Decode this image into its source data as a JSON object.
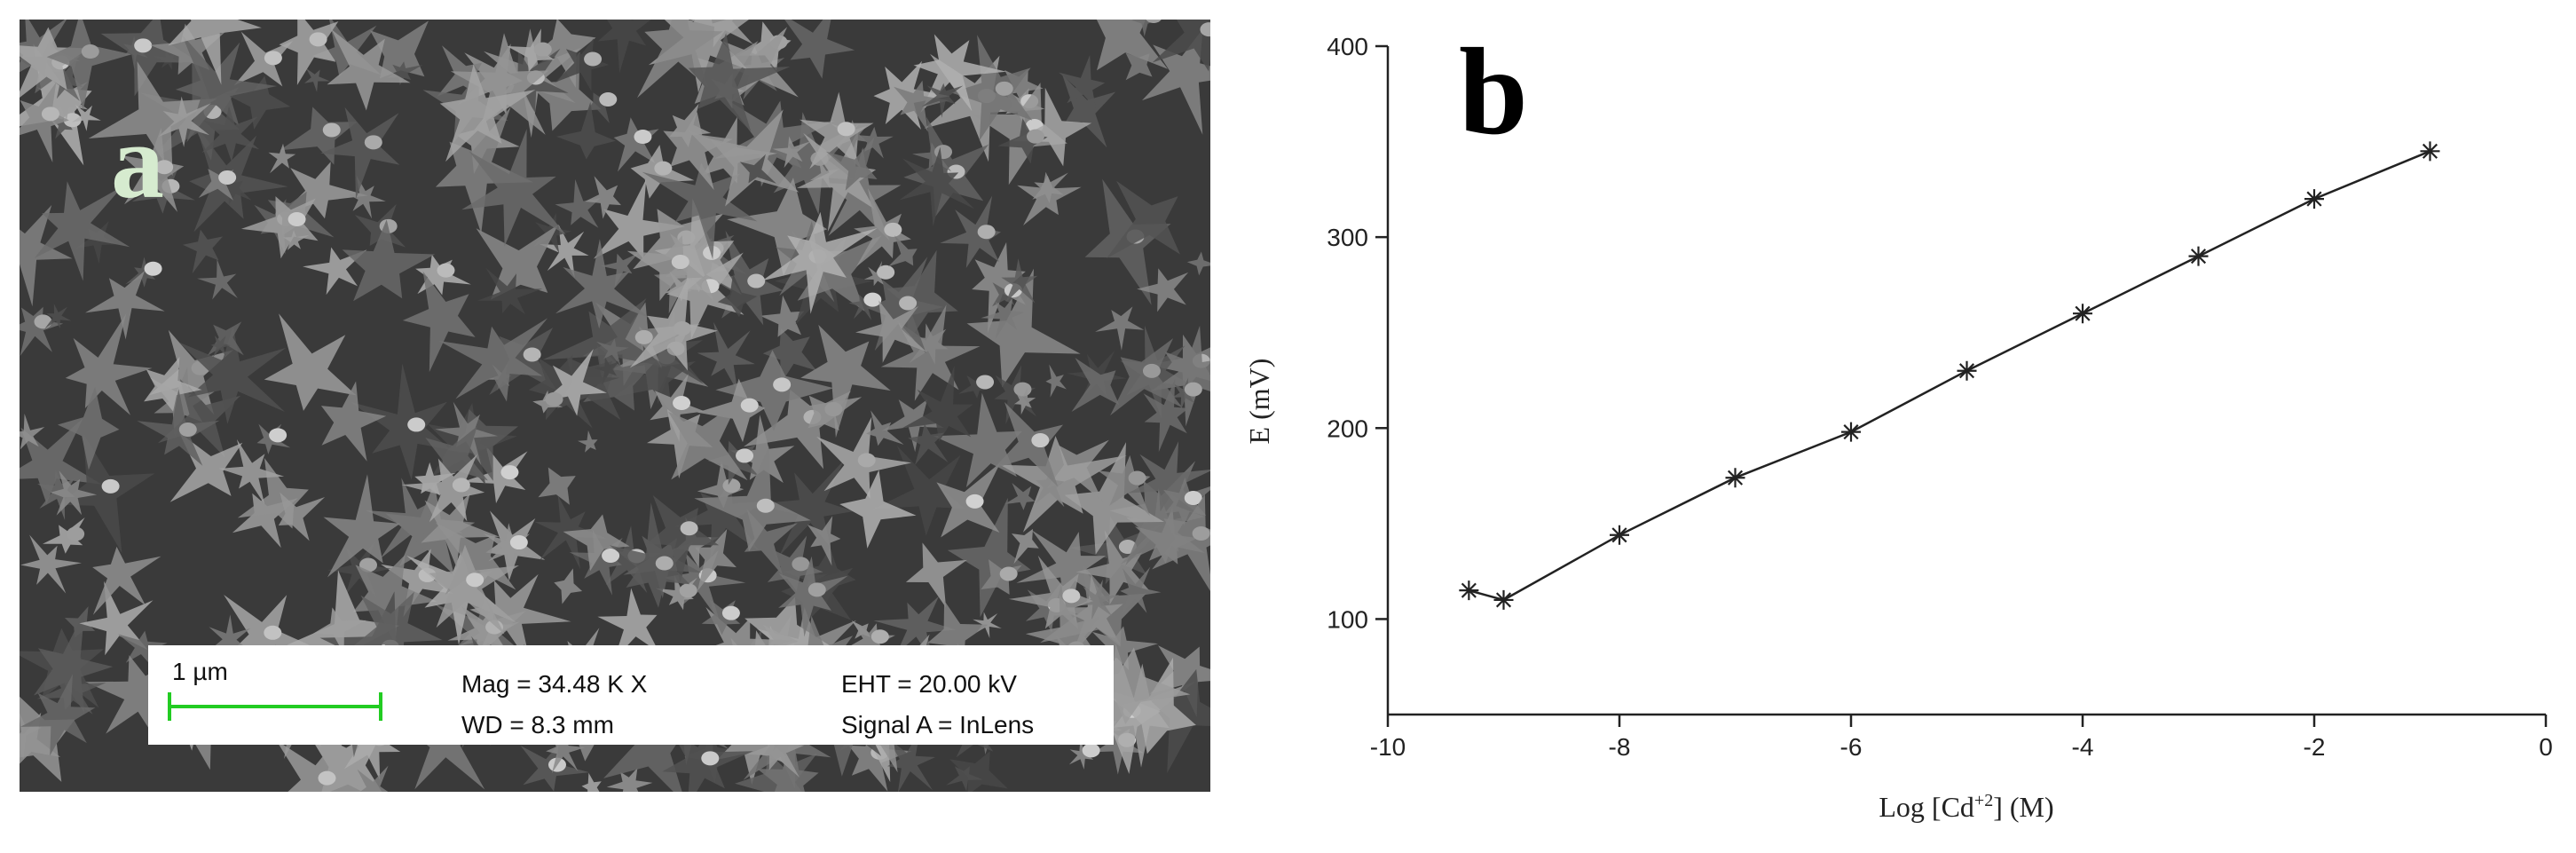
{
  "sem_image": {
    "panel_label": "a",
    "scale_bar": "1 µm",
    "mag": "Mag =  34.48 K X",
    "wd": "WD =  8.3 mm",
    "eht": "EHT = 20.00 kV",
    "signal": "Signal A = InLens"
  },
  "chart_data": {
    "type": "line",
    "panel_label": "b",
    "y_label": "E (mV)",
    "x_label": {
      "before": "Log [Cd",
      "superscript": "+2",
      "after": "] (M)"
    },
    "x": [
      -9.3,
      -9,
      -8,
      -7,
      -6,
      -5,
      -4,
      -3,
      -2,
      -1
    ],
    "values": [
      115,
      110,
      144,
      174,
      198,
      230,
      260,
      290,
      320,
      345
    ],
    "color": "#222222",
    "xlim": [
      -10,
      0
    ],
    "xticks": [
      -10,
      -8,
      -6,
      -4,
      -2,
      0
    ],
    "ylim": [
      50,
      400
    ],
    "yticks": [
      100,
      200,
      300,
      400
    ]
  }
}
